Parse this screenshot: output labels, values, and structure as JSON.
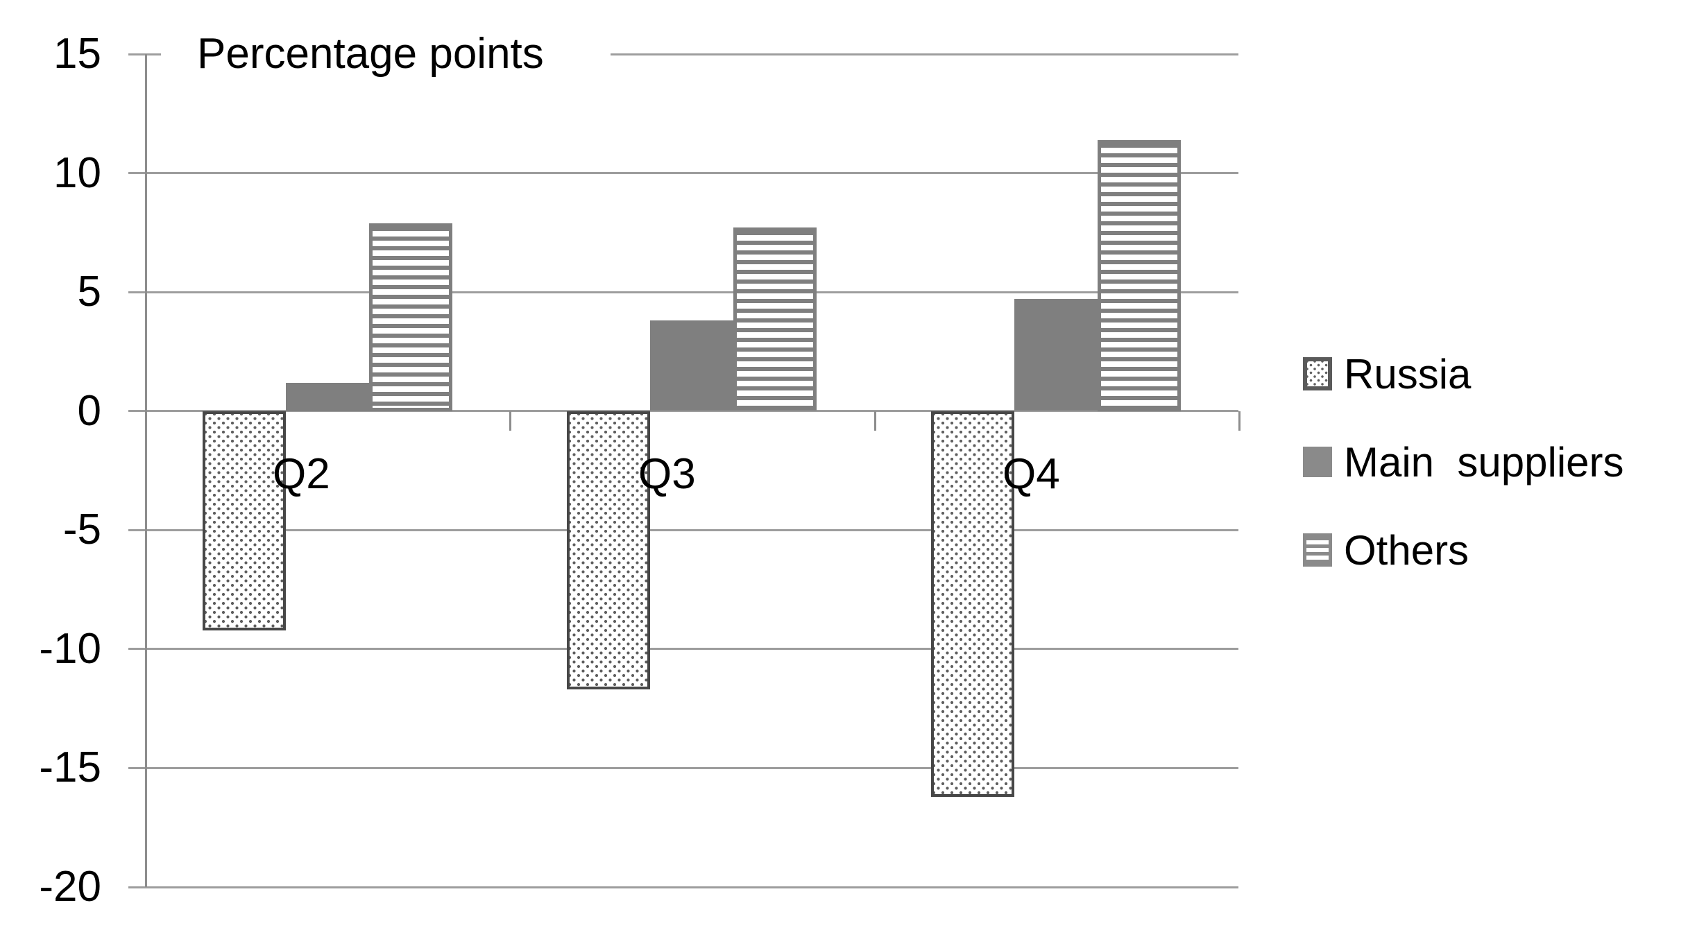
{
  "chart_data": {
    "type": "bar",
    "title": "Percentage points",
    "categories": [
      "Q2",
      "Q3",
      "Q4"
    ],
    "series": [
      {
        "name": "Russia",
        "pattern": "dots",
        "values": [
          -9.2,
          -11.7,
          -16.2
        ]
      },
      {
        "name": "Main  suppliers",
        "pattern": "solid",
        "values": [
          1.2,
          3.8,
          4.7
        ]
      },
      {
        "name": "Others",
        "pattern": "hlines",
        "values": [
          7.9,
          7.7,
          11.4
        ]
      }
    ],
    "y_axis": {
      "min": -20,
      "max": 15,
      "step": 5,
      "tick_labels": [
        "15",
        "10",
        "5",
        "0",
        "-5",
        "-10",
        "-15",
        "-20"
      ]
    },
    "xlabel": "",
    "ylabel": "Percentage points",
    "grid": true,
    "legend_position": "right",
    "colors": {
      "bar_solid_gray": "#7f7f7f",
      "pattern_stroke": "#7f7f7f",
      "dot_fill": "#5f5f5f",
      "dot_bar_border": "#474747",
      "gridline": "#9d9d9d",
      "axis": "#8d8d8d",
      "text": "#000000",
      "background": "#ffffff"
    }
  }
}
